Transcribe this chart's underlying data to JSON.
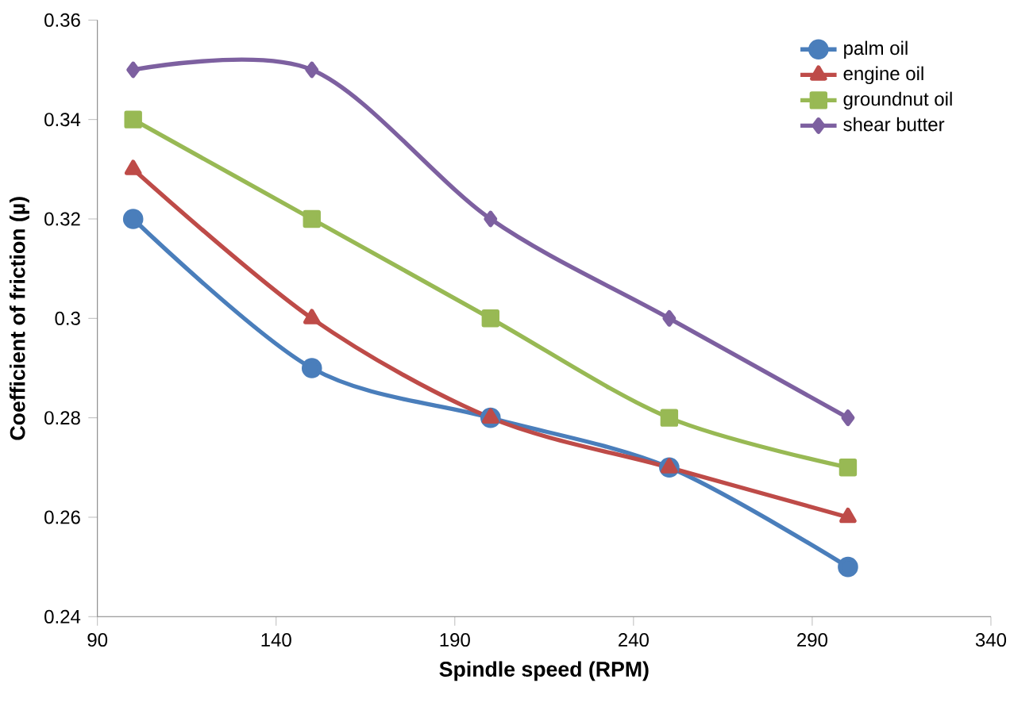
{
  "chart_data": {
    "type": "line",
    "xlabel": "Spindle speed (RPM)",
    "ylabel": "Coefficient of friction (µ)",
    "x": [
      100,
      150,
      200,
      250,
      300
    ],
    "xlim": [
      90,
      340
    ],
    "xticks": [
      90,
      140,
      190,
      240,
      290,
      340
    ],
    "ylim": [
      0.24,
      0.36
    ],
    "yticks": [
      0.24,
      0.26,
      0.28,
      0.3,
      0.32,
      0.34,
      0.36
    ],
    "legend": "top right",
    "grid": false,
    "line_style": "solid",
    "series": [
      {
        "name": "palm oil",
        "color": "#4a7ebb",
        "marker": "circle",
        "values": [
          0.32,
          0.29,
          0.28,
          0.27,
          0.25
        ]
      },
      {
        "name": "engine oil",
        "color": "#be4b48",
        "marker": "triangle",
        "values": [
          0.33,
          0.3,
          0.28,
          0.27,
          0.26
        ]
      },
      {
        "name": "groundnut oil",
        "color": "#98b954",
        "marker": "square",
        "values": [
          0.34,
          0.32,
          0.3,
          0.28,
          0.27
        ]
      },
      {
        "name": "shear butter",
        "color": "#7d60a0",
        "marker": "diamond",
        "values": [
          0.35,
          0.35,
          0.32,
          0.3,
          0.28
        ]
      }
    ]
  }
}
